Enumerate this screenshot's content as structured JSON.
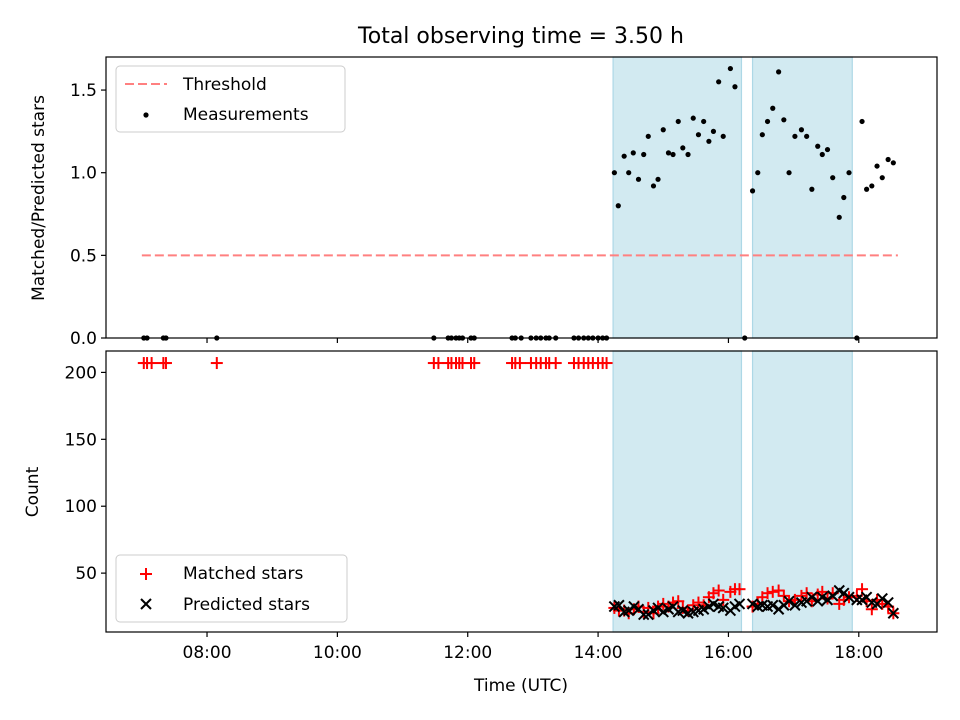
{
  "chart_data": {
    "title": "Total observing time = 3.50 h",
    "xlabel": "Time (UTC)",
    "x_ticks": [
      "08:00",
      "10:00",
      "12:00",
      "14:00",
      "16:00",
      "18:00"
    ],
    "x_tick_hours": [
      8,
      10,
      12,
      14,
      16,
      18
    ],
    "xlim_hours": [
      6.45,
      19.2
    ],
    "shaded_intervals_hours": [
      [
        14.23,
        16.2
      ],
      [
        16.37,
        17.9
      ]
    ],
    "colors": {
      "threshold": "#ff8080",
      "measurement": "#000000",
      "matched": "#ff0000",
      "predicted": "#000000",
      "shade": "#add8e6"
    },
    "panels": [
      {
        "type": "scatter",
        "ylabel": "Matched/Predicted stars",
        "ylim": [
          0,
          1.7
        ],
        "y_ticks": [
          "0.0",
          "0.5",
          "1.0",
          "1.5"
        ],
        "y_tick_values": [
          0,
          0.5,
          1.0,
          1.5
        ],
        "legend": {
          "placement": "upper left",
          "entries": [
            "Threshold",
            "Measurements"
          ]
        },
        "series": [
          {
            "name": "Threshold",
            "kind": "dashed-line",
            "x": [
              7.0,
              18.6
            ],
            "y": [
              0.5,
              0.5
            ]
          },
          {
            "name": "Measurements",
            "kind": "points",
            "points": [
              [
                7.03,
                0
              ],
              [
                7.08,
                0
              ],
              [
                7.33,
                0
              ],
              [
                7.37,
                0
              ],
              [
                8.15,
                0
              ],
              [
                11.48,
                0
              ],
              [
                11.7,
                0
              ],
              [
                11.75,
                0
              ],
              [
                11.82,
                0
              ],
              [
                11.87,
                0
              ],
              [
                11.92,
                0
              ],
              [
                12.05,
                0
              ],
              [
                12.1,
                0
              ],
              [
                12.68,
                0
              ],
              [
                12.73,
                0
              ],
              [
                12.82,
                0
              ],
              [
                12.97,
                0
              ],
              [
                13.05,
                0
              ],
              [
                13.12,
                0
              ],
              [
                13.2,
                0
              ],
              [
                13.25,
                0
              ],
              [
                13.35,
                0
              ],
              [
                13.63,
                0
              ],
              [
                13.7,
                0
              ],
              [
                13.78,
                0
              ],
              [
                13.85,
                0
              ],
              [
                13.92,
                0
              ],
              [
                14.0,
                0
              ],
              [
                14.07,
                0
              ],
              [
                14.13,
                0
              ],
              [
                14.25,
                1.0
              ],
              [
                14.31,
                0.8
              ],
              [
                14.4,
                1.1
              ],
              [
                14.47,
                1.0
              ],
              [
                14.54,
                1.12
              ],
              [
                14.62,
                0.96
              ],
              [
                14.7,
                1.11
              ],
              [
                14.77,
                1.22
              ],
              [
                14.85,
                0.92
              ],
              [
                14.92,
                0.96
              ],
              [
                15.0,
                1.26
              ],
              [
                15.08,
                1.12
              ],
              [
                15.15,
                1.11
              ],
              [
                15.23,
                1.31
              ],
              [
                15.3,
                1.15
              ],
              [
                15.38,
                1.11
              ],
              [
                15.46,
                1.33
              ],
              [
                15.54,
                1.23
              ],
              [
                15.62,
                1.31
              ],
              [
                15.7,
                1.19
              ],
              [
                15.77,
                1.25
              ],
              [
                15.85,
                1.55
              ],
              [
                15.92,
                1.22
              ],
              [
                16.03,
                1.63
              ],
              [
                16.1,
                1.52
              ],
              [
                16.25,
                0
              ],
              [
                16.37,
                0.89
              ],
              [
                16.45,
                1.0
              ],
              [
                16.52,
                1.23
              ],
              [
                16.6,
                1.31
              ],
              [
                16.68,
                1.39
              ],
              [
                16.77,
                1.61
              ],
              [
                16.85,
                1.32
              ],
              [
                16.93,
                1.0
              ],
              [
                17.02,
                1.22
              ],
              [
                17.12,
                1.26
              ],
              [
                17.2,
                1.22
              ],
              [
                17.28,
                0.9
              ],
              [
                17.37,
                1.16
              ],
              [
                17.44,
                1.11
              ],
              [
                17.52,
                1.14
              ],
              [
                17.6,
                0.97
              ],
              [
                17.7,
                0.73
              ],
              [
                17.77,
                0.85
              ],
              [
                17.85,
                1.0
              ],
              [
                17.97,
                0
              ],
              [
                18.05,
                1.31
              ],
              [
                18.12,
                0.9
              ],
              [
                18.2,
                0.92
              ],
              [
                18.28,
                1.04
              ],
              [
                18.36,
                0.97
              ],
              [
                18.45,
                1.08
              ],
              [
                18.53,
                1.06
              ]
            ]
          }
        ]
      },
      {
        "type": "scatter",
        "ylabel": "Count",
        "ylim": [
          6,
          216
        ],
        "y_ticks": [
          "50",
          "100",
          "150",
          "200"
        ],
        "y_tick_values": [
          50,
          100,
          150,
          200
        ],
        "legend": {
          "placement": "lower left",
          "entries": [
            "Matched stars",
            "Predicted stars"
          ]
        },
        "series": [
          {
            "name": "Matched stars",
            "kind": "plus-markers",
            "points": [
              [
                7.03,
                207
              ],
              [
                7.08,
                207
              ],
              [
                7.15,
                207
              ],
              [
                7.33,
                207
              ],
              [
                7.37,
                207
              ],
              [
                8.15,
                207
              ],
              [
                11.48,
                207
              ],
              [
                11.55,
                207
              ],
              [
                11.7,
                207
              ],
              [
                11.75,
                207
              ],
              [
                11.82,
                207
              ],
              [
                11.87,
                207
              ],
              [
                11.92,
                207
              ],
              [
                12.05,
                207
              ],
              [
                12.1,
                207
              ],
              [
                12.68,
                207
              ],
              [
                12.73,
                207
              ],
              [
                12.8,
                207
              ],
              [
                12.97,
                207
              ],
              [
                13.05,
                207
              ],
              [
                13.12,
                207
              ],
              [
                13.2,
                207
              ],
              [
                13.25,
                207
              ],
              [
                13.35,
                207
              ],
              [
                13.63,
                207
              ],
              [
                13.7,
                207
              ],
              [
                13.78,
                207
              ],
              [
                13.85,
                207
              ],
              [
                13.92,
                207
              ],
              [
                14.0,
                207
              ],
              [
                14.07,
                207
              ],
              [
                14.13,
                207
              ],
              [
                14.25,
                24
              ],
              [
                14.32,
                22
              ],
              [
                14.4,
                22
              ],
              [
                14.47,
                20
              ],
              [
                14.55,
                23
              ],
              [
                14.62,
                25
              ],
              [
                14.7,
                21
              ],
              [
                14.77,
                24
              ],
              [
                14.85,
                20
              ],
              [
                14.92,
                25
              ],
              [
                15.0,
                27
              ],
              [
                15.08,
                25
              ],
              [
                15.15,
                28
              ],
              [
                15.23,
                29
              ],
              [
                15.3,
                24
              ],
              [
                15.38,
                22
              ],
              [
                15.46,
                26
              ],
              [
                15.54,
                28
              ],
              [
                15.62,
                26
              ],
              [
                15.7,
                32
              ],
              [
                15.77,
                35
              ],
              [
                15.85,
                37
              ],
              [
                15.92,
                30
              ],
              [
                16.03,
                36
              ],
              [
                16.1,
                38
              ],
              [
                16.17,
                38
              ],
              [
                16.37,
                25
              ],
              [
                16.45,
                27
              ],
              [
                16.52,
                32
              ],
              [
                16.6,
                35
              ],
              [
                16.68,
                36
              ],
              [
                16.77,
                37
              ],
              [
                16.85,
                33
              ],
              [
                16.93,
                29
              ],
              [
                17.02,
                30
              ],
              [
                17.12,
                33
              ],
              [
                17.2,
                35
              ],
              [
                17.28,
                29
              ],
              [
                17.37,
                34
              ],
              [
                17.44,
                36
              ],
              [
                17.52,
                31
              ],
              [
                17.6,
                35
              ],
              [
                17.7,
                27
              ],
              [
                17.77,
                30
              ],
              [
                17.85,
                32
              ],
              [
                17.97,
                33
              ],
              [
                18.05,
                38
              ],
              [
                18.12,
                29
              ],
              [
                18.2,
                23
              ],
              [
                18.28,
                30
              ],
              [
                18.36,
                27
              ],
              [
                18.45,
                25
              ],
              [
                18.53,
                20
              ]
            ]
          },
          {
            "name": "Predicted stars",
            "kind": "x-markers",
            "points": [
              [
                14.25,
                25
              ],
              [
                14.32,
                26
              ],
              [
                14.4,
                21
              ],
              [
                14.47,
                22
              ],
              [
                14.55,
                25
              ],
              [
                14.62,
                23
              ],
              [
                14.7,
                19
              ],
              [
                14.77,
                19
              ],
              [
                14.85,
                22
              ],
              [
                14.92,
                24
              ],
              [
                15.0,
                21
              ],
              [
                15.08,
                23
              ],
              [
                15.15,
                25
              ],
              [
                15.23,
                21
              ],
              [
                15.3,
                22
              ],
              [
                15.38,
                20
              ],
              [
                15.46,
                21
              ],
              [
                15.54,
                22
              ],
              [
                15.62,
                23
              ],
              [
                15.7,
                25
              ],
              [
                15.77,
                27
              ],
              [
                15.85,
                25
              ],
              [
                15.92,
                24
              ],
              [
                16.03,
                22
              ],
              [
                16.1,
                25
              ],
              [
                16.17,
                27
              ],
              [
                16.37,
                27
              ],
              [
                16.45,
                25
              ],
              [
                16.52,
                26
              ],
              [
                16.6,
                25
              ],
              [
                16.68,
                26
              ],
              [
                16.77,
                23
              ],
              [
                16.85,
                26
              ],
              [
                16.93,
                29
              ],
              [
                17.02,
                26
              ],
              [
                17.12,
                28
              ],
              [
                17.2,
                29
              ],
              [
                17.28,
                32
              ],
              [
                17.37,
                29
              ],
              [
                17.44,
                32
              ],
              [
                17.52,
                30
              ],
              [
                17.6,
                33
              ],
              [
                17.7,
                37
              ],
              [
                17.77,
                35
              ],
              [
                17.85,
                32
              ],
              [
                17.97,
                30
              ],
              [
                18.05,
                30
              ],
              [
                18.12,
                32
              ],
              [
                18.2,
                28
              ],
              [
                18.28,
                27
              ],
              [
                18.36,
                31
              ],
              [
                18.45,
                28
              ],
              [
                18.53,
                20
              ]
            ]
          }
        ]
      }
    ]
  }
}
